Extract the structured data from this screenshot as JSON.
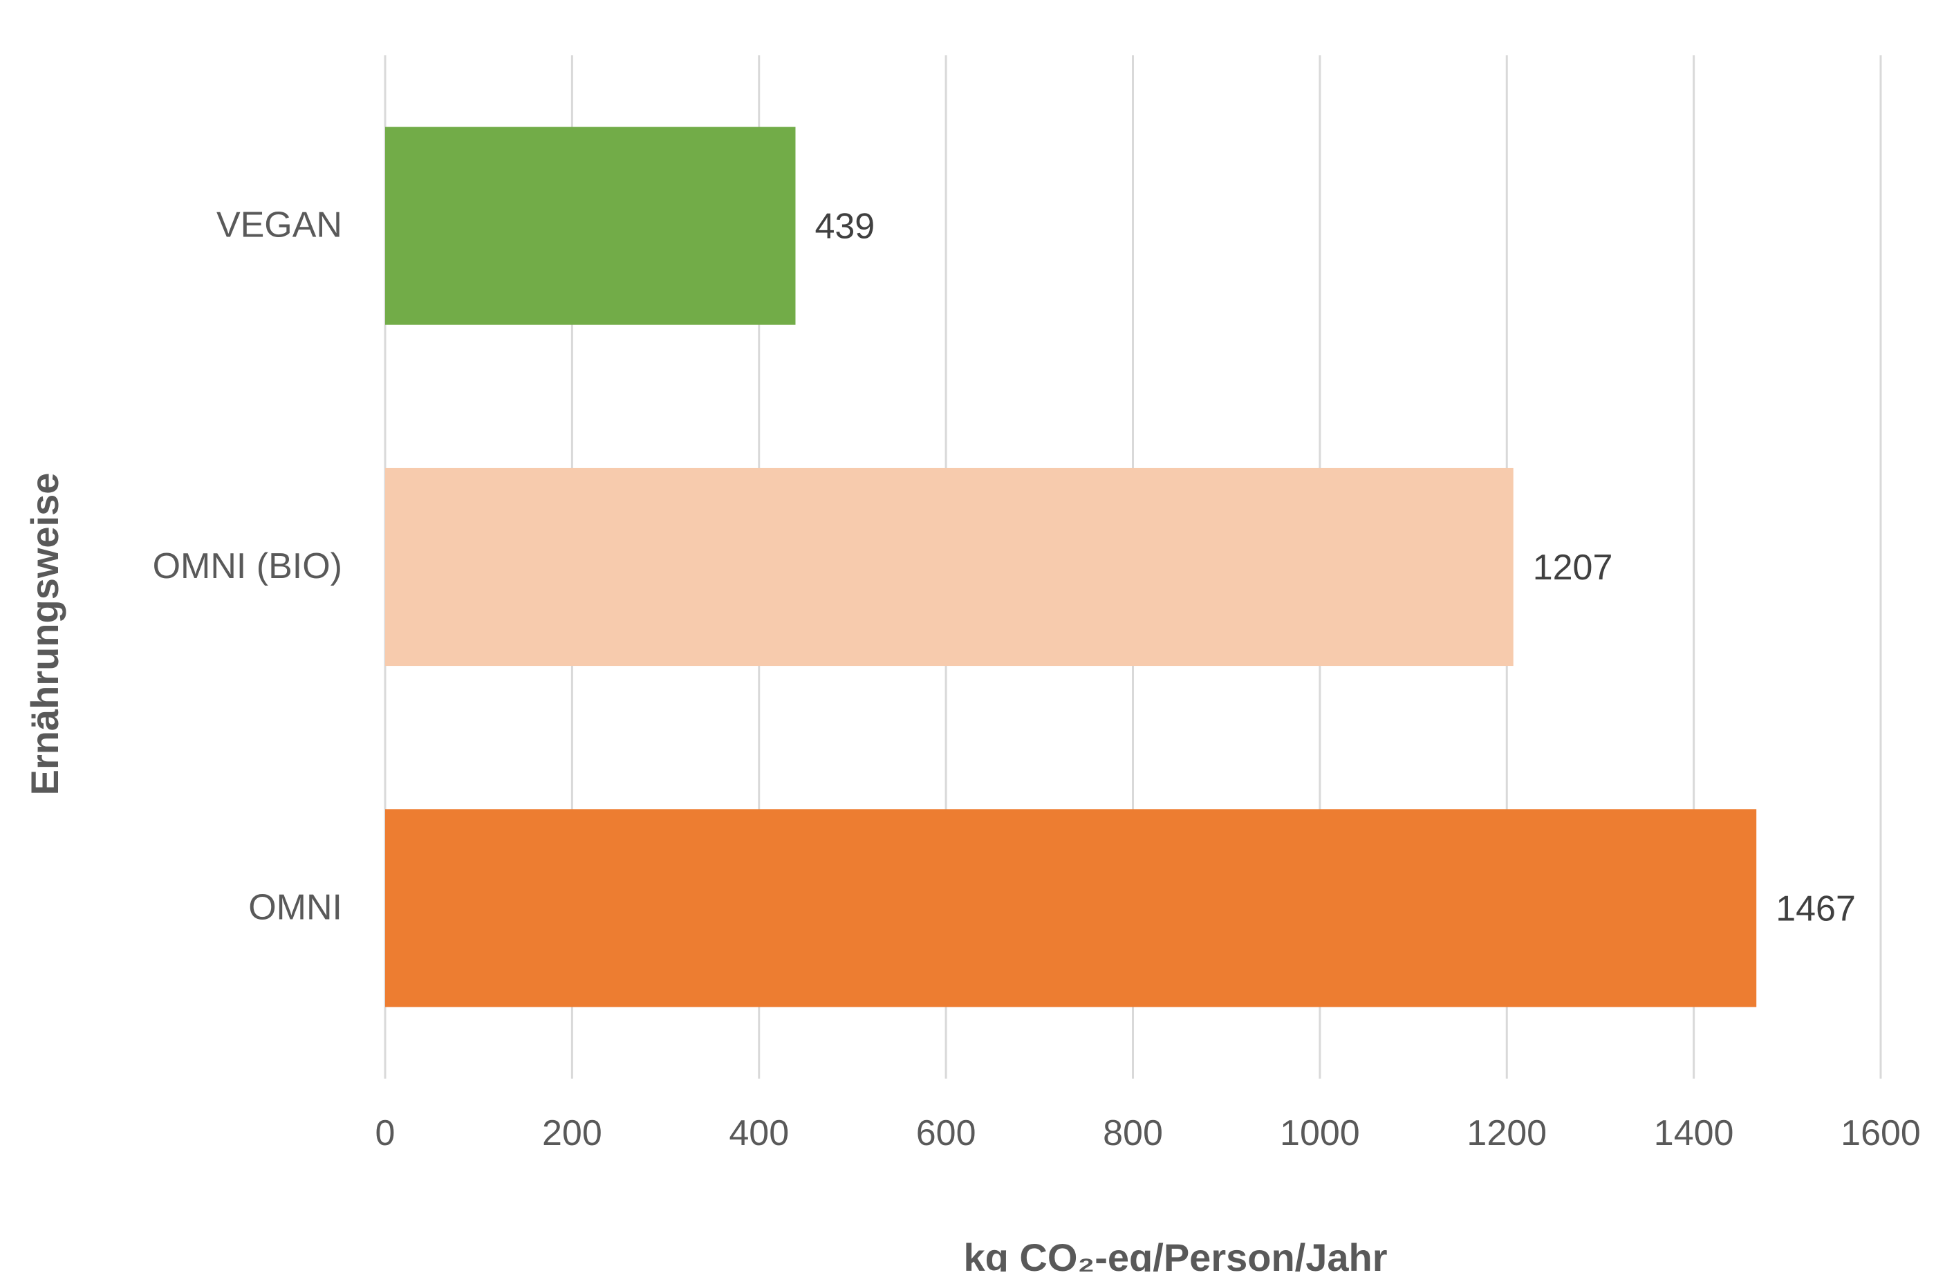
{
  "chart_data": {
    "type": "bar",
    "orientation": "horizontal",
    "title": "",
    "xlabel": "kg CO₂-eq/Person/Jahr",
    "ylabel": "Ernährungsweise",
    "categories": [
      "VEGAN",
      "OMNI (BIO)",
      "OMNI"
    ],
    "values": [
      439,
      1207,
      1467
    ],
    "data_labels": [
      "439",
      "1207",
      "1467"
    ],
    "xlim": [
      0,
      1600
    ],
    "xticks": [
      0,
      200,
      400,
      600,
      800,
      1000,
      1200,
      1400,
      1600
    ],
    "xtick_labels": [
      "0",
      "200",
      "400",
      "600",
      "800",
      "1000",
      "1200",
      "1400",
      "1600"
    ],
    "colors": [
      "#72AC48",
      "#F7CBAD",
      "#ED7D31"
    ],
    "grid": "vertical",
    "legend": "none"
  }
}
